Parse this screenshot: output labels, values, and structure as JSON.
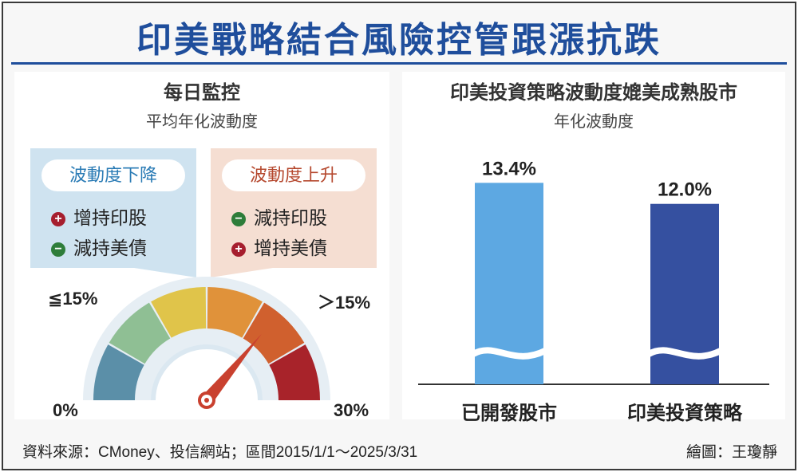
{
  "title": "印美戰略結合風險控管跟漲抗跌",
  "left": {
    "heading": "每日監控",
    "subheading": "平均年化波動度",
    "box_down": {
      "label": "波動度下降",
      "actions": [
        {
          "sign": "plus",
          "text": "增持印股"
        },
        {
          "sign": "minus",
          "text": "減持美債"
        }
      ]
    },
    "box_up": {
      "label": "波動度上升",
      "actions": [
        {
          "sign": "minus",
          "text": "減持印股"
        },
        {
          "sign": "plus",
          "text": "增持美債"
        }
      ]
    },
    "gauge": {
      "min_label": "0%",
      "max_label": "30%",
      "low_threshold_label": "≦15%",
      "high_threshold_label": "＞15%",
      "segment_colors": [
        "#5b8fa8",
        "#8fbf94",
        "#e0c44a",
        "#e0923a",
        "#d0602e",
        "#a8232a"
      ],
      "needle_fraction": 0.72,
      "needle_color": "#c9412f"
    }
  },
  "chart_data": {
    "type": "bar",
    "title": "印美投資策略波動度媲美成熟股市",
    "subtitle": "年化波動度",
    "categories": [
      "已開發股市",
      "印美投資策略"
    ],
    "values": [
      13.4,
      12.0
    ],
    "value_labels": [
      "13.4%",
      "12.0%"
    ],
    "colors": [
      "#5da8e2",
      "#3550a0"
    ],
    "axis_break": true,
    "ylim": [
      0,
      14
    ]
  },
  "footer": {
    "source": "資料來源：CMoney、投信網站；區間2015/1/1～2025/3/31",
    "credit": "繪圖：王瓊靜"
  }
}
